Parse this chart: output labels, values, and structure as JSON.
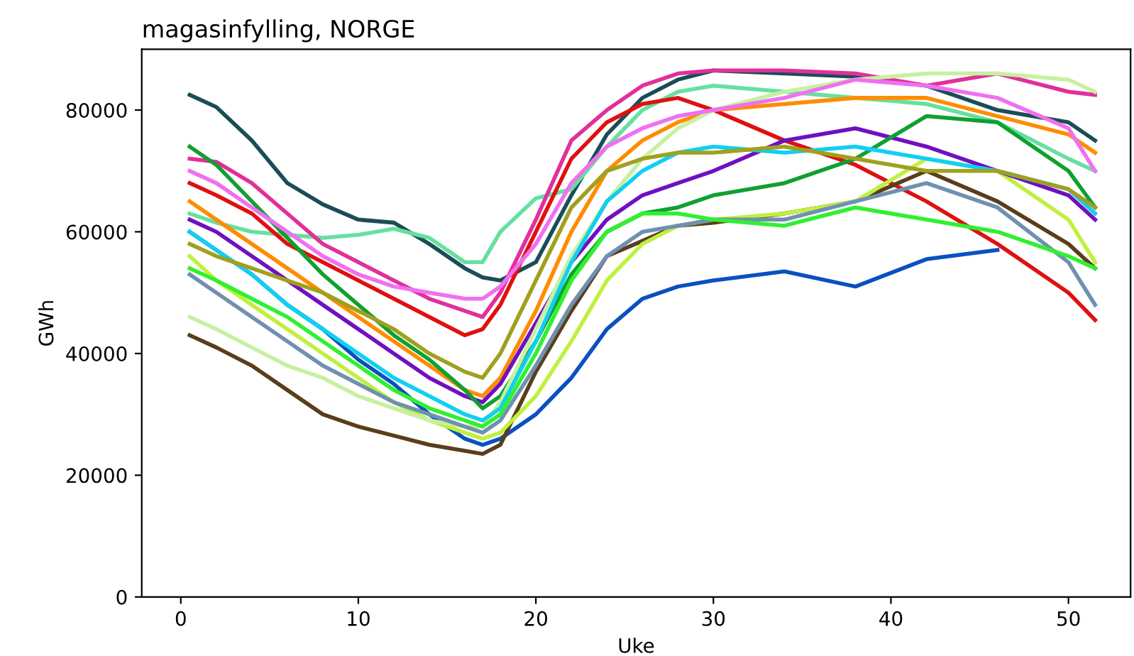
{
  "chart_data": {
    "type": "line",
    "title": "magasinfylling, NORGE",
    "xlabel": "Uke",
    "ylabel": "GWh",
    "x": [
      0.5,
      2,
      4,
      6,
      8,
      10,
      12,
      14,
      16,
      17,
      18,
      20,
      22,
      24,
      26,
      28,
      30,
      34,
      38,
      42,
      46,
      50,
      51.5
    ],
    "xlim": [
      -2.2,
      53.5
    ],
    "xticks": [
      0,
      10,
      20,
      30,
      40,
      50
    ],
    "ylim": [
      0,
      90000
    ],
    "yticks": [
      0,
      20000,
      40000,
      60000,
      80000
    ],
    "grid": false,
    "legend": false,
    "marker": "none",
    "line_style": "solid",
    "series": [
      {
        "color": "#1a4d57",
        "values": [
          82500,
          80500,
          75000,
          68000,
          64500,
          62000,
          61500,
          58000,
          54000,
          52500,
          52000,
          55000,
          66000,
          76000,
          82000,
          85000,
          86500,
          86000,
          85500,
          84000,
          80000,
          78000,
          75000
        ]
      },
      {
        "color": "#66e0a0",
        "values": [
          63000,
          61500,
          60000,
          59500,
          59000,
          59500,
          60500,
          59000,
          55000,
          55000,
          60000,
          65500,
          67000,
          74000,
          80000,
          83000,
          84000,
          83000,
          82000,
          81000,
          78000,
          72000,
          70000
        ]
      },
      {
        "color": "#0a50c0",
        "values": [
          60000,
          57000,
          53000,
          48000,
          44000,
          39000,
          35000,
          30000,
          26000,
          25000,
          26000,
          30000,
          36000,
          44000,
          49000,
          51000,
          52000,
          53500,
          51000,
          55500,
          57000,
          null,
          null
        ]
      },
      {
        "color": "#e01010",
        "values": [
          68000,
          66000,
          63000,
          58000,
          55000,
          52000,
          49000,
          46000,
          43000,
          44000,
          48000,
          60000,
          72000,
          78000,
          81000,
          82000,
          80000,
          75000,
          71000,
          65000,
          58000,
          50000,
          45500
        ]
      },
      {
        "color": "#5a3d1a",
        "values": [
          43000,
          41000,
          38000,
          34000,
          30000,
          28000,
          26500,
          25000,
          24000,
          23500,
          25000,
          37000,
          47000,
          56000,
          58500,
          61000,
          61500,
          63000,
          65000,
          70000,
          65000,
          58000,
          54000
        ]
      },
      {
        "color": "#e0309a",
        "values": [
          72000,
          71500,
          68000,
          63000,
          58000,
          55000,
          52000,
          49000,
          47000,
          46000,
          50000,
          62000,
          75000,
          80000,
          84000,
          86000,
          86500,
          86500,
          86000,
          84000,
          86000,
          83000,
          82500
        ]
      },
      {
        "color": "#c0f040",
        "values": [
          56000,
          52000,
          48000,
          44000,
          40000,
          36000,
          32000,
          29000,
          27000,
          26000,
          27000,
          33000,
          42000,
          52000,
          58000,
          61000,
          62000,
          63000,
          65000,
          72000,
          70000,
          62000,
          55000
        ]
      },
      {
        "color": "#ff8c00",
        "values": [
          65000,
          62000,
          58000,
          54000,
          50000,
          46000,
          42000,
          38000,
          34000,
          33000,
          36000,
          47000,
          60000,
          70000,
          75000,
          78000,
          80000,
          81000,
          82000,
          82000,
          79000,
          76000,
          73000
        ]
      },
      {
        "color": "#7010c0",
        "values": [
          62000,
          60000,
          56000,
          52000,
          48000,
          44000,
          40000,
          36000,
          33000,
          32000,
          35000,
          45000,
          55000,
          62000,
          66000,
          68000,
          70000,
          75000,
          77000,
          74000,
          70000,
          66000,
          62000
        ]
      },
      {
        "color": "#10a030",
        "values": [
          74000,
          71000,
          65000,
          59000,
          53000,
          48000,
          43000,
          39000,
          34000,
          31000,
          33000,
          42000,
          53000,
          60000,
          63000,
          64000,
          66000,
          68000,
          72000,
          79000,
          78000,
          70000,
          64000
        ]
      },
      {
        "color": "#c8f0a0",
        "values": [
          46000,
          44000,
          41000,
          38000,
          36000,
          33000,
          31000,
          29000,
          28000,
          28000,
          32000,
          44000,
          56000,
          65000,
          72000,
          77000,
          80000,
          83000,
          85000,
          86000,
          86000,
          85000,
          83000
        ]
      },
      {
        "color": "#10d0f0",
        "values": [
          60000,
          57000,
          53000,
          48000,
          44000,
          40000,
          36000,
          33000,
          30000,
          29000,
          31000,
          42000,
          55000,
          65000,
          70000,
          73000,
          74000,
          73000,
          74000,
          72000,
          70000,
          67000,
          63000
        ]
      },
      {
        "color": "#a0a020",
        "values": [
          58000,
          56000,
          54000,
          52000,
          50000,
          47000,
          44000,
          40000,
          37000,
          36000,
          40000,
          52000,
          64000,
          70000,
          72000,
          73000,
          73000,
          74000,
          72000,
          70000,
          70000,
          67000,
          64000
        ]
      },
      {
        "color": "#7090b0",
        "values": [
          53000,
          50000,
          46000,
          42000,
          38000,
          35000,
          32000,
          30000,
          28000,
          27000,
          29000,
          38000,
          48000,
          56000,
          60000,
          61000,
          62000,
          62000,
          65000,
          68000,
          64000,
          55000,
          48000
        ]
      },
      {
        "color": "#30f030",
        "values": [
          54000,
          52000,
          49000,
          46000,
          42000,
          38000,
          34000,
          31000,
          29000,
          28000,
          30000,
          40000,
          52000,
          60000,
          63000,
          63000,
          62000,
          61000,
          64000,
          62000,
          60000,
          56000,
          54000
        ]
      },
      {
        "color": "#f070f0",
        "values": [
          70000,
          68000,
          64000,
          60000,
          56000,
          53000,
          51000,
          50000,
          49000,
          49000,
          51000,
          58000,
          68000,
          74000,
          77000,
          79000,
          80000,
          82000,
          85000,
          84000,
          82000,
          77000,
          70000
        ]
      }
    ]
  }
}
